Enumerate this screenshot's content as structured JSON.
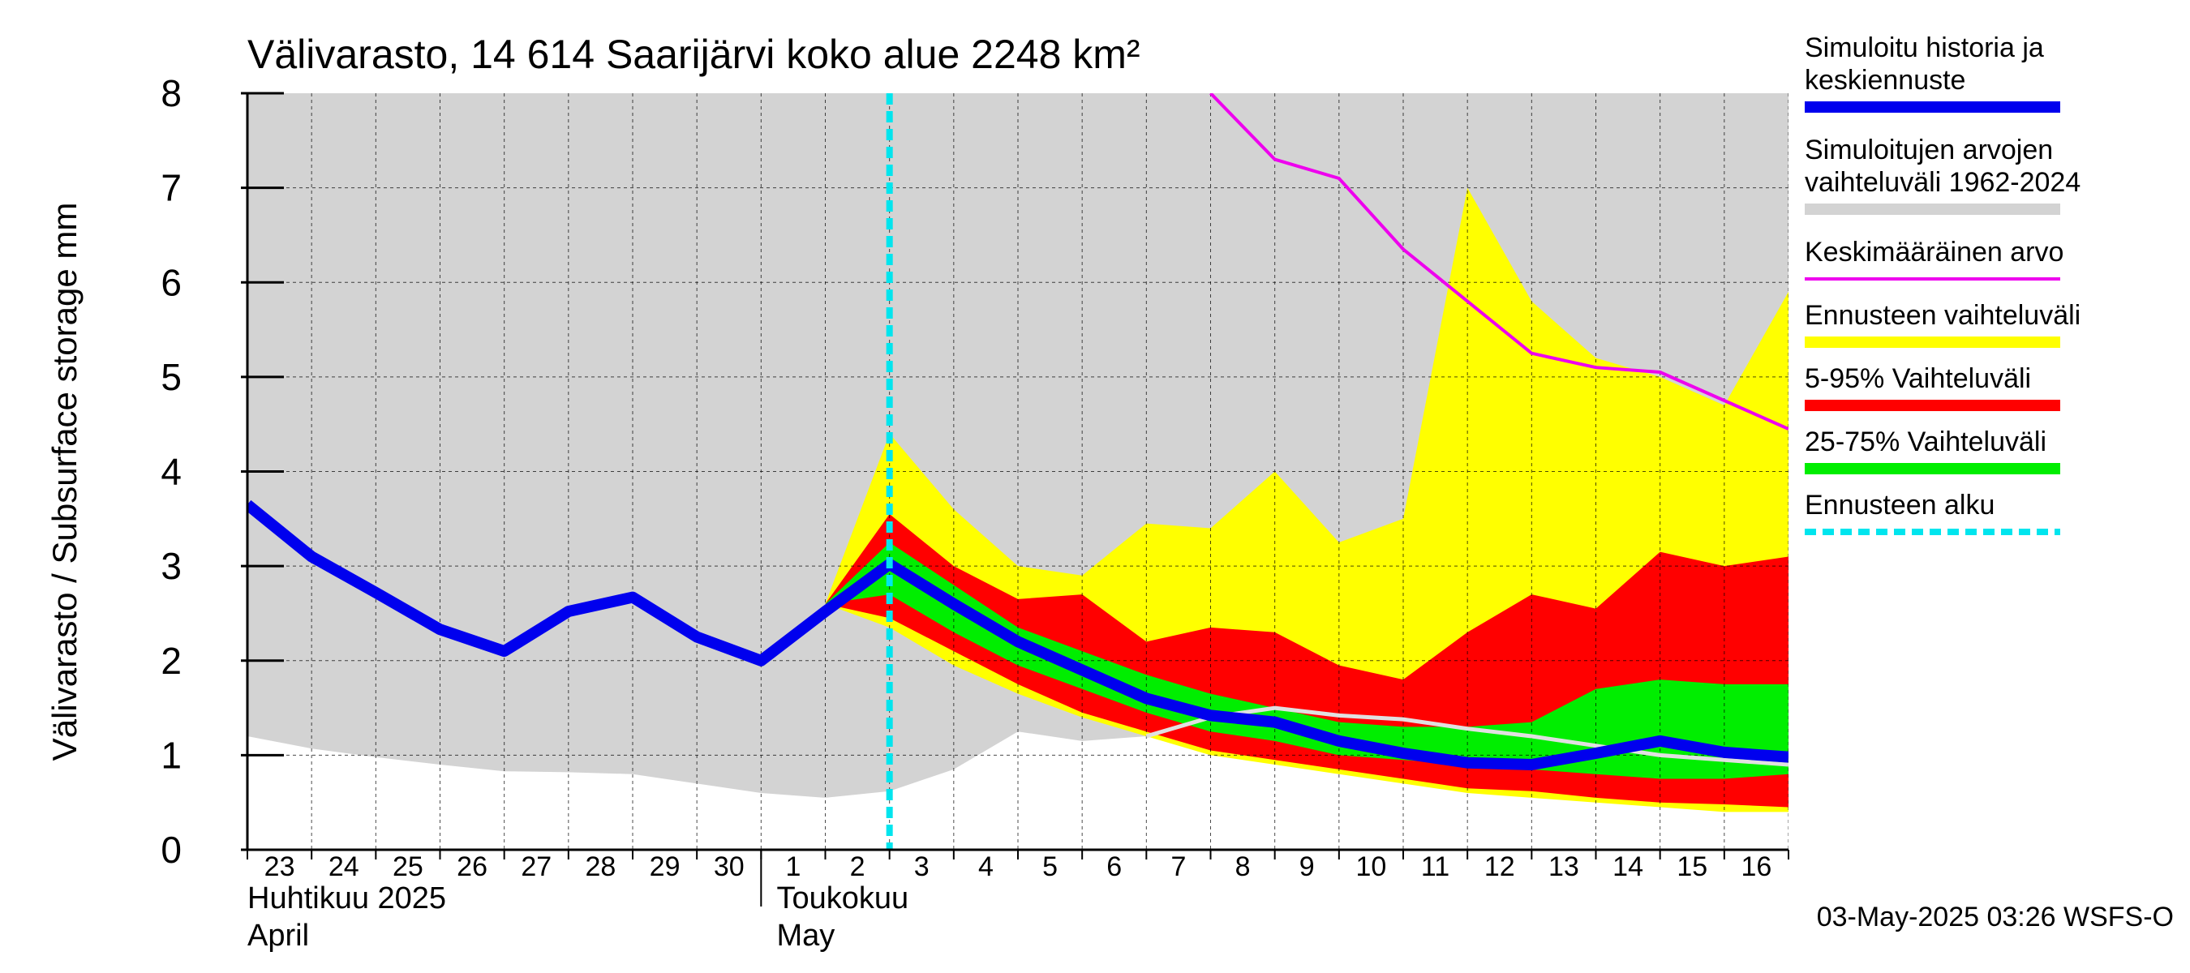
{
  "chart_data": {
    "type": "area",
    "title": "Välivarasto, 14 614 Saarijärvi koko alue 2248 km²",
    "ylabel": "Välivarasto / Subsurface storage  mm",
    "ylim": [
      0,
      8
    ],
    "yticks": [
      "0",
      "1",
      "2",
      "3",
      "4",
      "5",
      "6",
      "7",
      "8"
    ],
    "x_day_labels": [
      "23",
      "24",
      "25",
      "26",
      "27",
      "28",
      "29",
      "30",
      "1",
      "2",
      "3",
      "4",
      "5",
      "6",
      "7",
      "8",
      "9",
      "10",
      "11",
      "12",
      "13",
      "14",
      "15",
      "16"
    ],
    "x_dates": [
      "2025-04-23",
      "2025-04-24",
      "2025-04-25",
      "2025-04-26",
      "2025-04-27",
      "2025-04-28",
      "2025-04-29",
      "2025-04-30",
      "2025-05-01",
      "2025-05-02",
      "2025-05-03",
      "2025-05-04",
      "2025-05-05",
      "2025-05-06",
      "2025-05-07",
      "2025-05-08",
      "2025-05-09",
      "2025-05-10",
      "2025-05-11",
      "2025-05-12",
      "2025-05-13",
      "2025-05-14",
      "2025-05-15",
      "2025-05-16",
      "2025-05-17"
    ],
    "month_labels": [
      {
        "fi": "Huhtikuu  2025",
        "en": "April"
      },
      {
        "fi": "Toukokuu",
        "en": "May"
      }
    ],
    "forecast_start": "2025-05-03",
    "colors": {
      "history_band": "#d3d3d3",
      "simulated": "#0000ee",
      "mean": "#ee00ee",
      "forecast_range": "#ffff00",
      "p5_95": "#ff0000",
      "p25_75": "#00ee00",
      "forecast_start": "#00e5ee",
      "median_grey": "#e0e0e0"
    },
    "history_band": {
      "x": [
        "2025-04-23",
        "2025-04-24",
        "2025-04-25",
        "2025-04-26",
        "2025-04-27",
        "2025-04-28",
        "2025-04-29",
        "2025-04-30",
        "2025-05-01",
        "2025-05-02",
        "2025-05-03",
        "2025-05-04",
        "2025-05-05",
        "2025-05-06",
        "2025-05-07",
        "2025-05-08",
        "2025-05-09",
        "2025-05-10",
        "2025-05-11",
        "2025-05-12",
        "2025-05-13",
        "2025-05-14",
        "2025-05-15",
        "2025-05-16",
        "2025-05-17"
      ],
      "upper": [
        8,
        8,
        8,
        8,
        8,
        8,
        8,
        8,
        8,
        8,
        8,
        8,
        8,
        8,
        8,
        8,
        8,
        8,
        8,
        8,
        8,
        8,
        8,
        8,
        8
      ],
      "lower": [
        1.2,
        1.07,
        0.98,
        0.9,
        0.83,
        0.82,
        0.8,
        0.7,
        0.6,
        0.55,
        0.62,
        0.85,
        1.25,
        1.15,
        1.2,
        1.35,
        1.4,
        1.3,
        1.2,
        1.15,
        1.1,
        1.05,
        1.0,
        1.0,
        1.0
      ]
    },
    "forecast_x": [
      "2025-05-02",
      "2025-05-03",
      "2025-05-04",
      "2025-05-05",
      "2025-05-06",
      "2025-05-07",
      "2025-05-08",
      "2025-05-09",
      "2025-05-10",
      "2025-05-11",
      "2025-05-12",
      "2025-05-13",
      "2025-05-14",
      "2025-05-15",
      "2025-05-16",
      "2025-05-17"
    ],
    "forecast_range": {
      "upper": [
        2.6,
        4.4,
        3.6,
        3.0,
        2.9,
        3.45,
        3.4,
        4.0,
        3.25,
        3.5,
        7.0,
        5.8,
        5.2,
        5.0,
        4.7,
        5.9
      ],
      "lower": [
        2.6,
        2.35,
        1.95,
        1.65,
        1.4,
        1.2,
        1.0,
        0.9,
        0.8,
        0.7,
        0.6,
        0.55,
        0.5,
        0.45,
        0.4,
        0.4
      ]
    },
    "p5_95": {
      "upper": [
        2.6,
        3.55,
        3.0,
        2.65,
        2.7,
        2.2,
        2.35,
        2.3,
        1.95,
        1.8,
        2.3,
        2.7,
        2.55,
        3.15,
        3.0,
        3.1
      ],
      "lower": [
        2.6,
        2.45,
        2.1,
        1.75,
        1.45,
        1.25,
        1.05,
        0.95,
        0.85,
        0.75,
        0.65,
        0.62,
        0.55,
        0.5,
        0.48,
        0.45
      ]
    },
    "p25_75": {
      "upper": [
        2.6,
        3.25,
        2.8,
        2.35,
        2.1,
        1.85,
        1.65,
        1.5,
        1.35,
        1.3,
        1.3,
        1.35,
        1.7,
        1.8,
        1.75,
        1.75
      ],
      "lower": [
        2.6,
        2.7,
        2.3,
        1.95,
        1.7,
        1.45,
        1.25,
        1.15,
        1.0,
        0.95,
        0.9,
        0.85,
        0.8,
        0.75,
        0.75,
        0.8
      ]
    },
    "median_grey": {
      "x": [
        "2025-05-07",
        "2025-05-08",
        "2025-05-09",
        "2025-05-10",
        "2025-05-11",
        "2025-05-12",
        "2025-05-13",
        "2025-05-14",
        "2025-05-15",
        "2025-05-16",
        "2025-05-17"
      ],
      "y": [
        1.2,
        1.4,
        1.5,
        1.42,
        1.38,
        1.28,
        1.2,
        1.1,
        1.0,
        0.95,
        0.9
      ]
    },
    "mean_line": {
      "x": [
        "2025-05-08",
        "2025-05-09",
        "2025-05-10",
        "2025-05-11",
        "2025-05-12",
        "2025-05-13",
        "2025-05-14",
        "2025-05-15",
        "2025-05-16",
        "2025-05-17"
      ],
      "y": [
        8.0,
        7.3,
        7.1,
        6.35,
        5.8,
        5.25,
        5.1,
        5.05,
        4.75,
        4.45
      ]
    },
    "simulated": {
      "x": [
        "2025-04-23",
        "2025-04-24",
        "2025-04-25",
        "2025-04-26",
        "2025-04-27",
        "2025-04-28",
        "2025-04-29",
        "2025-04-30",
        "2025-05-01",
        "2025-05-02",
        "2025-05-03",
        "2025-05-04",
        "2025-05-05",
        "2025-05-06",
        "2025-05-07",
        "2025-05-08",
        "2025-05-09",
        "2025-05-10",
        "2025-05-11",
        "2025-05-12",
        "2025-05-13",
        "2025-05-14",
        "2025-05-15",
        "2025-05-16",
        "2025-05-17"
      ],
      "y": [
        3.65,
        3.1,
        2.72,
        2.33,
        2.1,
        2.52,
        2.67,
        2.25,
        2.0,
        2.52,
        3.02,
        2.6,
        2.2,
        1.9,
        1.6,
        1.42,
        1.35,
        1.15,
        1.02,
        0.92,
        0.9,
        1.02,
        1.15,
        1.03,
        0.98
      ]
    },
    "legend": [
      {
        "label_lines": [
          "Simuloitu historia ja",
          "keskiennuste"
        ],
        "color": "#0000ee",
        "style": "thick"
      },
      {
        "label_lines": [
          "Simuloitujen arvojen",
          "vaihteluväli 1962-2024"
        ],
        "color": "#d3d3d3",
        "style": "thick"
      },
      {
        "label_lines": [
          "Keskimääräinen arvo"
        ],
        "color": "#ee00ee",
        "style": "thin"
      },
      {
        "label_lines": [
          "Ennusteen vaihteluväli"
        ],
        "color": "#ffff00",
        "style": "thick"
      },
      {
        "label_lines": [
          "5-95% Vaihteluväli"
        ],
        "color": "#ff0000",
        "style": "thick"
      },
      {
        "label_lines": [
          "25-75% Vaihteluväli"
        ],
        "color": "#00ee00",
        "style": "thick"
      },
      {
        "label_lines": [
          "Ennusteen alku"
        ],
        "color": "#00e5ee",
        "style": "dashed"
      }
    ],
    "footer": "03-May-2025 03:26 WSFS-O",
    "grid": true,
    "legend_position": "right"
  }
}
